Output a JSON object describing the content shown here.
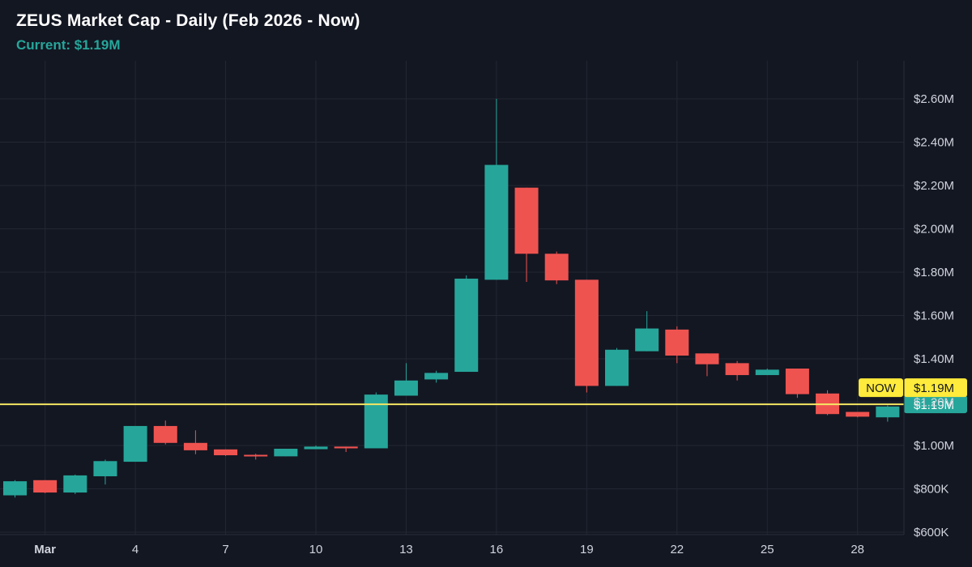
{
  "header": {
    "title": "ZEUS Market Cap - Daily (Feb 2026 - Now)",
    "subtitle": "Current: $1.19M"
  },
  "colors": {
    "background": "#131722",
    "up": "#26a69a",
    "down": "#ef5350",
    "now_line": "#f5e663",
    "now_badge": "#ffeb3b",
    "grid": "#232733",
    "text": "#d1d4dc"
  },
  "chart_data": {
    "type": "candlestick",
    "title": "ZEUS Market Cap - Daily (Feb 2026 - Now)",
    "subtitle": "Current: $1.19M",
    "y_unit": "USD market cap",
    "ylim": [
      600000,
      2760000
    ],
    "y_ticks": [
      {
        "value": 600000,
        "label": "$600K"
      },
      {
        "value": 800000,
        "label": "$800K"
      },
      {
        "value": 1000000,
        "label": "$1.00M"
      },
      {
        "value": 1200000,
        "label": "$1.20M"
      },
      {
        "value": 1400000,
        "label": "$1.40M"
      },
      {
        "value": 1600000,
        "label": "$1.60M"
      },
      {
        "value": 1800000,
        "label": "$1.80M"
      },
      {
        "value": 2000000,
        "label": "$2.00M"
      },
      {
        "value": 2200000,
        "label": "$2.20M"
      },
      {
        "value": 2400000,
        "label": "$2.40M"
      },
      {
        "value": 2600000,
        "label": "$2.60M"
      }
    ],
    "x_ticks": [
      {
        "day": 1,
        "label": "Mar",
        "bold": true
      },
      {
        "day": 4,
        "label": "4"
      },
      {
        "day": 7,
        "label": "7"
      },
      {
        "day": 10,
        "label": "10"
      },
      {
        "day": 13,
        "label": "13"
      },
      {
        "day": 16,
        "label": "16"
      },
      {
        "day": 19,
        "label": "19"
      },
      {
        "day": 22,
        "label": "22"
      },
      {
        "day": 25,
        "label": "25"
      },
      {
        "day": 28,
        "label": "28"
      }
    ],
    "grid": true,
    "candles": [
      {
        "day": 0,
        "open": 770000,
        "high": 840000,
        "low": 760000,
        "close": 835000
      },
      {
        "day": 1,
        "open": 840000,
        "high": 840000,
        "low": 780000,
        "close": 783000
      },
      {
        "day": 2,
        "open": 783000,
        "high": 866000,
        "low": 776000,
        "close": 862000
      },
      {
        "day": 3,
        "open": 858000,
        "high": 935000,
        "low": 820000,
        "close": 928000
      },
      {
        "day": 4,
        "open": 925000,
        "high": 1090000,
        "low": 925000,
        "close": 1090000
      },
      {
        "day": 5,
        "open": 1090000,
        "high": 1115000,
        "low": 1005000,
        "close": 1012000
      },
      {
        "day": 6,
        "open": 1012000,
        "high": 1070000,
        "low": 960000,
        "close": 978000
      },
      {
        "day": 7,
        "open": 982000,
        "high": 982000,
        "low": 952000,
        "close": 955000
      },
      {
        "day": 8,
        "open": 957000,
        "high": 962000,
        "low": 935000,
        "close": 950000
      },
      {
        "day": 9,
        "open": 950000,
        "high": 985000,
        "low": 950000,
        "close": 985000
      },
      {
        "day": 10,
        "open": 983000,
        "high": 1000000,
        "low": 983000,
        "close": 995000
      },
      {
        "day": 11,
        "open": 995000,
        "high": 995000,
        "low": 970000,
        "close": 987000
      },
      {
        "day": 12,
        "open": 987000,
        "high": 1245000,
        "low": 987000,
        "close": 1235000
      },
      {
        "day": 13,
        "open": 1230000,
        "high": 1380000,
        "low": 1230000,
        "close": 1300000
      },
      {
        "day": 14,
        "open": 1305000,
        "high": 1345000,
        "low": 1290000,
        "close": 1335000
      },
      {
        "day": 15,
        "open": 1340000,
        "high": 1785000,
        "low": 1340000,
        "close": 1770000
      },
      {
        "day": 16,
        "open": 1765000,
        "high": 2600000,
        "low": 1765000,
        "close": 2295000
      },
      {
        "day": 17,
        "open": 2190000,
        "high": 2190000,
        "low": 1755000,
        "close": 1885000
      },
      {
        "day": 18,
        "open": 1885000,
        "high": 1895000,
        "low": 1745000,
        "close": 1762000
      },
      {
        "day": 19,
        "open": 1765000,
        "high": 1765000,
        "low": 1245000,
        "close": 1275000
      },
      {
        "day": 20,
        "open": 1275000,
        "high": 1450000,
        "low": 1275000,
        "close": 1442000
      },
      {
        "day": 21,
        "open": 1435000,
        "high": 1620000,
        "low": 1435000,
        "close": 1540000
      },
      {
        "day": 22,
        "open": 1535000,
        "high": 1550000,
        "low": 1380000,
        "close": 1415000
      },
      {
        "day": 23,
        "open": 1425000,
        "high": 1425000,
        "low": 1320000,
        "close": 1375000
      },
      {
        "day": 24,
        "open": 1380000,
        "high": 1390000,
        "low": 1300000,
        "close": 1325000
      },
      {
        "day": 25,
        "open": 1325000,
        "high": 1355000,
        "low": 1325000,
        "close": 1350000
      },
      {
        "day": 26,
        "open": 1355000,
        "high": 1355000,
        "low": 1220000,
        "close": 1237000
      },
      {
        "day": 27,
        "open": 1240000,
        "high": 1255000,
        "low": 1140000,
        "close": 1145000
      },
      {
        "day": 28,
        "open": 1155000,
        "high": 1155000,
        "low": 1130000,
        "close": 1133000
      },
      {
        "day": 29,
        "open": 1130000,
        "high": 1185000,
        "low": 1110000,
        "close": 1180000
      }
    ],
    "current_price": 1190000,
    "current_label": "$1.19M",
    "now_marker": {
      "label": "NOW",
      "value_label": "$1.19M"
    }
  }
}
